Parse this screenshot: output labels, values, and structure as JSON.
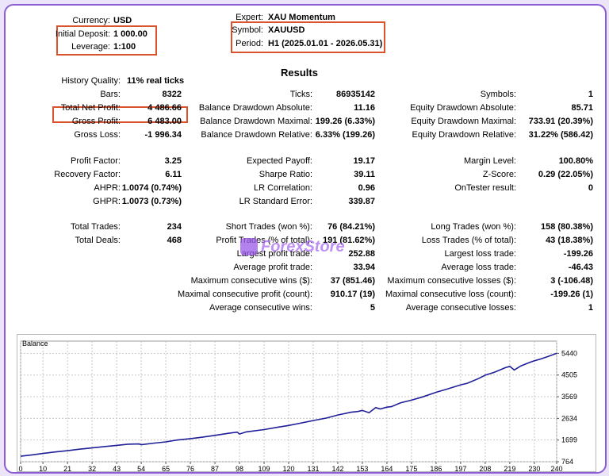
{
  "settings": {
    "currency_label": "Currency:",
    "currency": "USD",
    "deposit_label": "Initial Deposit:",
    "deposit": "1 000.00",
    "leverage_label": "Leverage:",
    "leverage": "1:100",
    "expert_label": "Expert:",
    "expert": "XAU Momentum",
    "symbol_label": "Symbol:",
    "symbol": "XAUUSD",
    "period_label": "Period:",
    "period": "H1 (2025.01.01 - 2026.05.31)"
  },
  "results_title": "Results",
  "col1": [
    {
      "label": "History Quality:",
      "value": "11% real ticks"
    },
    {
      "label": "Bars:",
      "value": "8322"
    },
    {
      "label": "Total Net Profit:",
      "value": "4 486.66"
    },
    {
      "label": "Gross Profit:",
      "value": "6 483.00"
    },
    {
      "label": "Gross Loss:",
      "value": "-1 996.34"
    },
    {
      "label": "Profit Factor:",
      "value": "3.25"
    },
    {
      "label": "Recovery Factor:",
      "value": "6.11"
    },
    {
      "label": "AHPR:",
      "value": "1.0074 (0.74%)"
    },
    {
      "label": "GHPR:",
      "value": "1.0073 (0.73%)"
    },
    {
      "label": "Total Trades:",
      "value": "234"
    },
    {
      "label": "Total Deals:",
      "value": "468"
    }
  ],
  "col2": [
    {
      "label": "Ticks:",
      "value": "86935142"
    },
    {
      "label": "Balance Drawdown Absolute:",
      "value": "11.16"
    },
    {
      "label": "Balance Drawdown Maximal:",
      "value": "199.26 (6.33%)"
    },
    {
      "label": "Balance Drawdown Relative:",
      "value": "6.33% (199.26)"
    },
    {
      "label": "Expected Payoff:",
      "value": "19.17"
    },
    {
      "label": "Sharpe Ratio:",
      "value": "39.11"
    },
    {
      "label": "LR Correlation:",
      "value": "0.96"
    },
    {
      "label": "LR Standard Error:",
      "value": "339.87"
    },
    {
      "label": "Short Trades (won %):",
      "value": "76 (84.21%)"
    },
    {
      "label": "Profit Trades (% of total):",
      "value": "191 (81.62%)"
    },
    {
      "label": "Largest profit trade:",
      "value": "252.88"
    },
    {
      "label": "Average profit trade:",
      "value": "33.94"
    },
    {
      "label": "Maximum consecutive wins ($):",
      "value": "37 (851.46)"
    },
    {
      "label": "Maximal consecutive profit (count):",
      "value": "910.17 (19)"
    },
    {
      "label": "Average consecutive wins:",
      "value": "5"
    }
  ],
  "col3": [
    {
      "label": "Symbols:",
      "value": "1"
    },
    {
      "label": "Equity Drawdown Absolute:",
      "value": "85.71"
    },
    {
      "label": "Equity Drawdown Maximal:",
      "value": "733.91 (20.39%)"
    },
    {
      "label": "Equity Drawdown Relative:",
      "value": "31.22% (586.42)"
    },
    {
      "label": "Margin Level:",
      "value": "100.80%"
    },
    {
      "label": "Z-Score:",
      "value": "0.29 (22.05%)"
    },
    {
      "label": "OnTester result:",
      "value": "0"
    },
    {
      "label": "Long Trades (won %):",
      "value": "158 (80.38%)"
    },
    {
      "label": "Loss Trades (% of total):",
      "value": "43 (18.38%)"
    },
    {
      "label": "Largest loss trade:",
      "value": "-199.26"
    },
    {
      "label": "Average loss trade:",
      "value": "-46.43"
    },
    {
      "label": "Maximum consecutive losses ($):",
      "value": "3 (-106.48)"
    },
    {
      "label": "Maximal consecutive loss (count):",
      "value": "-199.26 (1)"
    },
    {
      "label": "Average consecutive losses:",
      "value": "1"
    }
  ],
  "watermark": "ForexStore",
  "chart_data": {
    "type": "line",
    "title": "Balance",
    "series_color": "#1f1f9a",
    "grid": true,
    "xlim": [
      0,
      240
    ],
    "ylim": [
      764,
      5625
    ],
    "x_ticks": [
      0,
      10,
      21,
      32,
      43,
      54,
      65,
      76,
      87,
      98,
      109,
      120,
      131,
      142,
      153,
      164,
      175,
      186,
      197,
      208,
      219,
      230,
      240
    ],
    "x_tick_labels": [
      "0",
      "10",
      "21",
      "32",
      "43",
      "54",
      "65",
      "76",
      "87",
      "98",
      "109",
      "120",
      "131",
      "142",
      "153",
      "164",
      "175",
      "186",
      "197",
      "208",
      "219",
      "230",
      "240"
    ],
    "x_ticks_raw": [
      0,
      10,
      21,
      32,
      43,
      54,
      65,
      76,
      87,
      98,
      109,
      120,
      131,
      142,
      153,
      164,
      175,
      186,
      197,
      208,
      219,
      230,
      240
    ],
    "x_ticks_note": "",
    "y_ticks": [
      764,
      1699,
      2634,
      3569,
      4505,
      5440
    ],
    "y_tick_labels": [
      "764",
      "1699",
      "2634",
      "3569",
      "4505",
      "5440"
    ],
    "x": [
      0,
      5,
      10,
      15,
      21,
      26,
      32,
      37,
      43,
      48,
      53,
      54,
      60,
      65,
      70,
      76,
      81,
      87,
      93,
      97,
      98,
      101,
      109,
      115,
      120,
      126,
      131,
      137,
      142,
      148,
      151,
      153,
      156,
      159,
      161,
      164,
      166,
      170,
      175,
      180,
      186,
      191,
      197,
      200,
      205,
      208,
      212,
      217,
      219,
      221,
      224,
      228,
      230,
      233,
      236,
      240
    ],
    "y": [
      1000,
      1060,
      1120,
      1180,
      1240,
      1300,
      1360,
      1410,
      1470,
      1520,
      1530,
      1500,
      1570,
      1620,
      1700,
      1760,
      1820,
      1900,
      1990,
      2040,
      1960,
      2050,
      2150,
      2250,
      2330,
      2440,
      2540,
      2650,
      2780,
      2900,
      2930,
      2980,
      2880,
      3100,
      3040,
      3120,
      3140,
      3300,
      3420,
      3560,
      3760,
      3900,
      4080,
      4150,
      4350,
      4500,
      4620,
      4820,
      4880,
      4720,
      4900,
      5050,
      5120,
      5200,
      5300,
      5440
    ]
  }
}
